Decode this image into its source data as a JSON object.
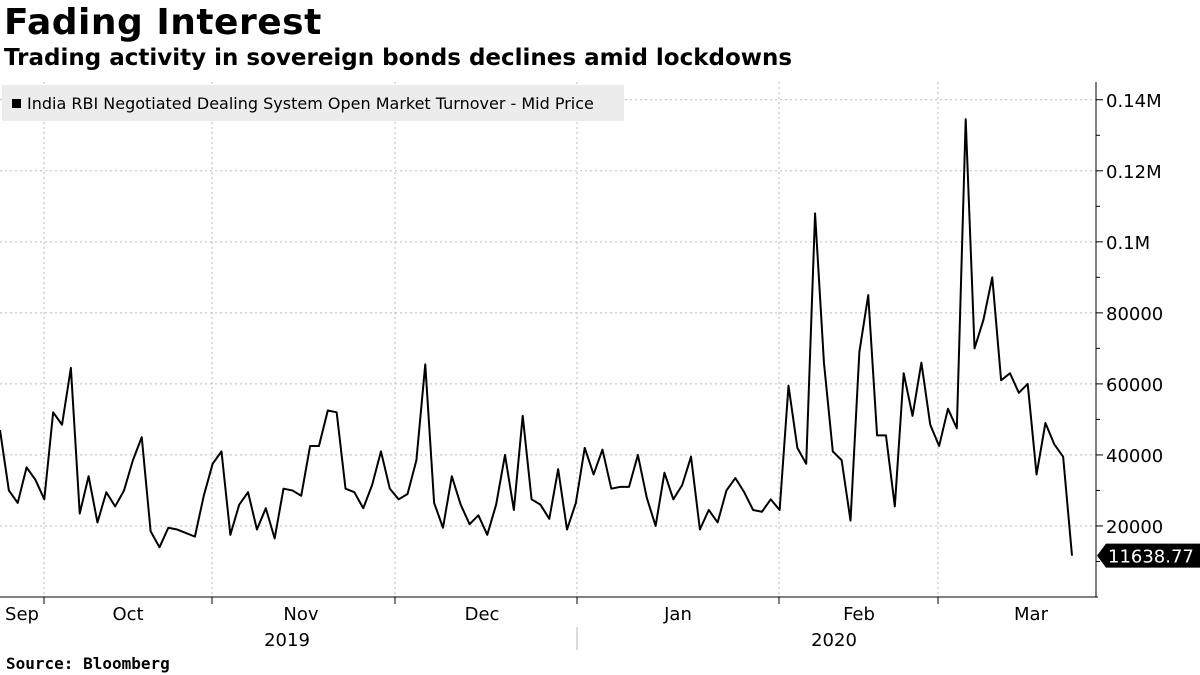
{
  "title": "Fading Interest",
  "subtitle": "Trading activity in sovereign bonds declines amid lockdowns",
  "legend": {
    "label": "India RBI Negotiated Dealing System Open Market Turnover - Mid Price"
  },
  "source": "Source: Bloomberg",
  "colors": {
    "line": "#000000",
    "grid": "#bbbbbb",
    "legend_bg": "#ececec"
  },
  "chart_data": {
    "type": "line",
    "title": "Fading Interest",
    "subtitle": "Trading activity in sovereign bonds declines amid lockdowns",
    "xlabel": "",
    "ylabel": "",
    "ylim": [
      0,
      145000
    ],
    "y_ticks": [
      {
        "value": 20000,
        "label": "20000"
      },
      {
        "value": 40000,
        "label": "40000"
      },
      {
        "value": 60000,
        "label": "60000"
      },
      {
        "value": 80000,
        "label": "80000"
      },
      {
        "value": 100000,
        "label": "0.1M"
      },
      {
        "value": 120000,
        "label": "0.12M"
      },
      {
        "value": 140000,
        "label": "0.14M"
      }
    ],
    "x_month_labels": [
      "Sep",
      "Oct",
      "Nov",
      "Dec",
      "Jan",
      "Feb",
      "Mar"
    ],
    "x_year_labels": [
      "2019",
      "2020"
    ],
    "last_value_label": "11638.77",
    "grid": true,
    "legend_position": "top-left",
    "series": [
      {
        "name": "India RBI Negotiated Dealing System Open Market Turnover - Mid Price",
        "values": [
          47000,
          30000,
          26500,
          36500,
          33000,
          27500,
          52000,
          48500,
          64500,
          23500,
          34000,
          21000,
          29500,
          25500,
          30000,
          38500,
          45000,
          18500,
          14000,
          19500,
          19000,
          18000,
          17000,
          28500,
          37500,
          41000,
          17500,
          26000,
          29500,
          19000,
          25000,
          16500,
          30500,
          30000,
          28500,
          42500,
          42500,
          52500,
          52000,
          30500,
          29500,
          25000,
          31500,
          41000,
          30500,
          27500,
          29000,
          38500,
          65500,
          26500,
          19500,
          34000,
          26000,
          20500,
          23000,
          17500,
          26000,
          40000,
          24500,
          51000,
          27500,
          26000,
          22000,
          36000,
          19000,
          26500,
          42000,
          34500,
          41500,
          30500,
          31000,
          31000,
          40000,
          28000,
          20000,
          35000,
          27500,
          31500,
          39500,
          19000,
          24500,
          21000,
          30000,
          33500,
          29500,
          24500,
          24000,
          27500,
          24500,
          59500,
          42000,
          37500,
          108000,
          66000,
          41000,
          38500,
          21500,
          69000,
          85000,
          45500,
          45500,
          25500,
          63000,
          51000,
          66000,
          48500,
          42500,
          53000,
          47500,
          134500,
          70000,
          78000,
          90000,
          61000,
          63000,
          57500,
          60000,
          34500,
          49000,
          43000,
          39500,
          11638.77
        ]
      }
    ]
  }
}
